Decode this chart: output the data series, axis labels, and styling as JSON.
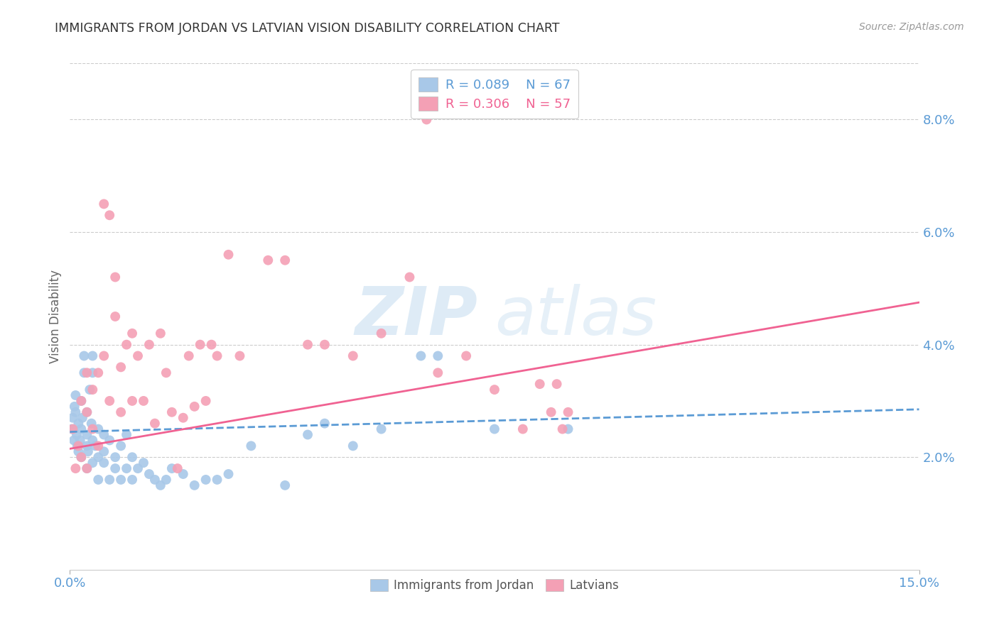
{
  "title": "IMMIGRANTS FROM JORDAN VS LATVIAN VISION DISABILITY CORRELATION CHART",
  "source": "Source: ZipAtlas.com",
  "ylabel": "Vision Disability",
  "xlim": [
    0.0,
    0.15
  ],
  "ylim": [
    0.0,
    0.09
  ],
  "xtick_positions": [
    0.0,
    0.15
  ],
  "xticklabels": [
    "0.0%",
    "15.0%"
  ],
  "yticks_right": [
    0.02,
    0.04,
    0.06,
    0.08
  ],
  "ytick_labels_right": [
    "2.0%",
    "4.0%",
    "6.0%",
    "8.0%"
  ],
  "background_color": "#ffffff",
  "axis_color": "#5b9bd5",
  "watermark_zip": "ZIP",
  "watermark_atlas": "atlas",
  "legend_r1": "0.089",
  "legend_n1": "67",
  "legend_r2": "0.306",
  "legend_n2": "57",
  "color_jordan": "#a8c8e8",
  "color_latvian": "#f4a0b5",
  "color_jordan_line": "#5b9bd5",
  "color_latvian_line": "#f06292",
  "jordan_points_x": [
    0.0003,
    0.0005,
    0.0007,
    0.0008,
    0.001,
    0.001,
    0.0012,
    0.0013,
    0.0015,
    0.0015,
    0.0018,
    0.002,
    0.002,
    0.002,
    0.0022,
    0.0025,
    0.0025,
    0.003,
    0.003,
    0.003,
    0.003,
    0.0032,
    0.0035,
    0.0038,
    0.004,
    0.004,
    0.004,
    0.004,
    0.0045,
    0.005,
    0.005,
    0.005,
    0.006,
    0.006,
    0.006,
    0.007,
    0.007,
    0.008,
    0.008,
    0.009,
    0.009,
    0.01,
    0.01,
    0.011,
    0.011,
    0.012,
    0.013,
    0.014,
    0.015,
    0.016,
    0.017,
    0.018,
    0.02,
    0.022,
    0.024,
    0.026,
    0.028,
    0.032,
    0.038,
    0.042,
    0.045,
    0.05,
    0.055,
    0.062,
    0.065,
    0.075,
    0.088
  ],
  "jordan_points_y": [
    0.025,
    0.027,
    0.023,
    0.029,
    0.031,
    0.028,
    0.024,
    0.022,
    0.026,
    0.021,
    0.023,
    0.025,
    0.03,
    0.02,
    0.027,
    0.035,
    0.038,
    0.022,
    0.024,
    0.028,
    0.018,
    0.021,
    0.032,
    0.026,
    0.023,
    0.019,
    0.035,
    0.038,
    0.022,
    0.025,
    0.02,
    0.016,
    0.021,
    0.024,
    0.019,
    0.023,
    0.016,
    0.02,
    0.018,
    0.022,
    0.016,
    0.024,
    0.018,
    0.02,
    0.016,
    0.018,
    0.019,
    0.017,
    0.016,
    0.015,
    0.016,
    0.018,
    0.017,
    0.015,
    0.016,
    0.016,
    0.017,
    0.022,
    0.015,
    0.024,
    0.026,
    0.022,
    0.025,
    0.038,
    0.038,
    0.025,
    0.025
  ],
  "latvian_points_x": [
    0.0005,
    0.001,
    0.0015,
    0.002,
    0.002,
    0.003,
    0.003,
    0.003,
    0.004,
    0.004,
    0.005,
    0.005,
    0.006,
    0.006,
    0.007,
    0.007,
    0.008,
    0.008,
    0.009,
    0.009,
    0.01,
    0.011,
    0.011,
    0.012,
    0.013,
    0.014,
    0.015,
    0.016,
    0.017,
    0.018,
    0.019,
    0.02,
    0.021,
    0.022,
    0.023,
    0.024,
    0.025,
    0.026,
    0.028,
    0.03,
    0.035,
    0.038,
    0.042,
    0.045,
    0.05,
    0.055,
    0.06,
    0.063,
    0.065,
    0.07,
    0.075,
    0.08,
    0.083,
    0.085,
    0.086,
    0.087,
    0.088
  ],
  "latvian_points_y": [
    0.025,
    0.018,
    0.022,
    0.03,
    0.02,
    0.035,
    0.028,
    0.018,
    0.025,
    0.032,
    0.035,
    0.022,
    0.038,
    0.065,
    0.03,
    0.063,
    0.045,
    0.052,
    0.028,
    0.036,
    0.04,
    0.042,
    0.03,
    0.038,
    0.03,
    0.04,
    0.026,
    0.042,
    0.035,
    0.028,
    0.018,
    0.027,
    0.038,
    0.029,
    0.04,
    0.03,
    0.04,
    0.038,
    0.056,
    0.038,
    0.055,
    0.055,
    0.04,
    0.04,
    0.038,
    0.042,
    0.052,
    0.08,
    0.035,
    0.038,
    0.032,
    0.025,
    0.033,
    0.028,
    0.033,
    0.025,
    0.028
  ],
  "jordan_trend_x0": 0.0,
  "jordan_trend_x1": 0.15,
  "jordan_trend_y0": 0.0245,
  "jordan_trend_y1": 0.0285,
  "latvian_trend_x0": 0.0,
  "latvian_trend_x1": 0.15,
  "latvian_trend_y0": 0.0215,
  "latvian_trend_y1": 0.0475
}
